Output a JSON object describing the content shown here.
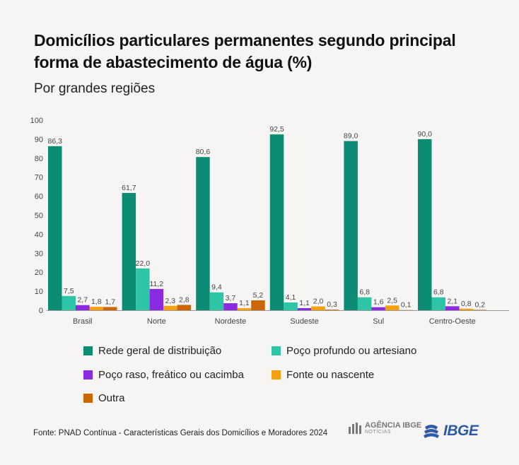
{
  "title": "Domicílios particulares permanentes segundo principal forma de abastecimento de água (%)",
  "subtitle": "Por grandes regiões",
  "source": "Fonte: PNAD Contínua - Características Gerais dos Domicílios e Moradores 2024",
  "agency": {
    "name": "AGÊNCIA IBGE",
    "sub": "NOTÍCIAS"
  },
  "brand": "IBGE",
  "colors": {
    "rede": "#0c8c72",
    "poco_profundo": "#2ec4a6",
    "poco_raso": "#8a2be2",
    "fonte": "#f5a00c",
    "outra": "#cc6600"
  },
  "chart_data": {
    "type": "bar",
    "categories": [
      "Brasil",
      "Norte",
      "Nordeste",
      "Sudeste",
      "Sul",
      "Centro-Oeste"
    ],
    "series": [
      {
        "name": "Rede geral de distribuição",
        "color": "#0c8c72",
        "values": [
          86.3,
          61.7,
          80.6,
          92.5,
          89.0,
          90.0
        ],
        "labels": [
          "86,3",
          "61,7",
          "80,6",
          "92,5",
          "89,0",
          "90,0"
        ]
      },
      {
        "name": "Poço profundo ou artesiano",
        "color": "#2ec4a6",
        "values": [
          7.5,
          22.0,
          9.4,
          4.1,
          6.8,
          6.8
        ],
        "labels": [
          "7,5",
          "22,0",
          "9,4",
          "4,1",
          "6,8",
          "6,8"
        ]
      },
      {
        "name": "Poço raso, freático ou cacimba",
        "color": "#8a2be2",
        "values": [
          2.7,
          11.2,
          3.7,
          1.1,
          1.6,
          2.1
        ],
        "labels": [
          "2,7",
          "11,2",
          "3,7",
          "1,1",
          "1,6",
          "2,1"
        ]
      },
      {
        "name": "Fonte ou nascente",
        "color": "#f5a00c",
        "values": [
          1.8,
          2.3,
          1.1,
          2.0,
          2.5,
          0.8
        ],
        "labels": [
          "1,8",
          "2,3",
          "1,1",
          "2,0",
          "2,5",
          "0,8"
        ]
      },
      {
        "name": "Outra",
        "color": "#cc6600",
        "values": [
          1.7,
          2.8,
          5.2,
          0.3,
          0.1,
          0.2
        ],
        "labels": [
          "1,7",
          "2,8",
          "5,2",
          "0,3",
          "0,1",
          "0,2"
        ]
      }
    ],
    "yticks": [
      "0",
      "10",
      "20",
      "30",
      "40",
      "50",
      "60",
      "70",
      "80",
      "90",
      "100"
    ],
    "ylim": [
      0,
      100
    ],
    "grid": false,
    "legend_position": "bottom"
  }
}
